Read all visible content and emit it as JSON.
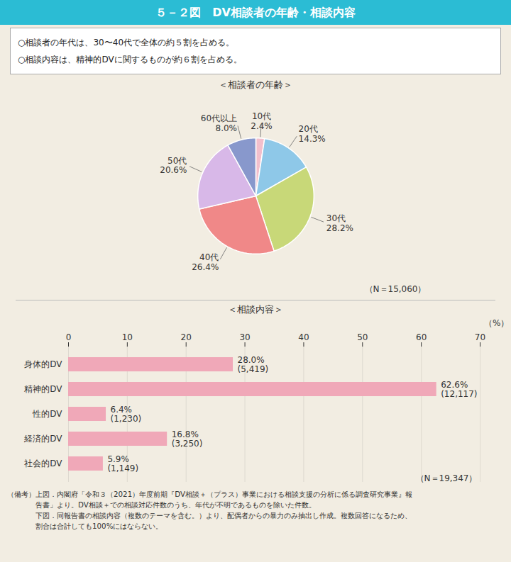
{
  "title": "５－２図　DV相談者の年齢・相談内容",
  "subtitle": [
    "○相談者の年代は、30〜40代で全体の約５割を占める。",
    "○相談内容は、精神的DVに関するものが約６割を占める。"
  ],
  "annotations": [
    "（備考）上図．内閣府「令和３（2021）年度前期『DV相談＋（プラス）事業における相談支援の分析に係る調査研究事業』報",
    "　　　　告書」より。DV相談＋での相談対応件数のうち、年代が不明であるものを除いた件数。",
    "　　　　下図．同報告書の相談内容（複数のテーマを含む。）より、配偶者からの暴力のみ抽出し作成。複数回答になるため、",
    "　　　　割合は合計しても100%にはならない。"
  ],
  "chart_data": [
    {
      "type": "pie",
      "title": "＜相談者の年齢＞",
      "categories": [
        "10代",
        "20代",
        "30代",
        "40代",
        "50代",
        "60代以上"
      ],
      "values": [
        2.4,
        14.3,
        28.2,
        26.4,
        20.6,
        8.0
      ],
      "value_labels": [
        "2.4%",
        "14.3%",
        "28.2%",
        "26.4%",
        "20.6%",
        "8.0%"
      ],
      "colors": [
        "#f2bfcc",
        "#8ec8e8",
        "#c8d878",
        "#f08888",
        "#d8b8e8",
        "#8898cc"
      ],
      "data_labels": true,
      "annotations": [
        "（N＝15,060）"
      ]
    },
    {
      "type": "bar",
      "title": "＜相談内容＞",
      "orientation": "horizontal",
      "categories": [
        "身体的DV",
        "精神的DV",
        "性的DV",
        "経済的DV",
        "社会的DV"
      ],
      "values": [
        28.0,
        62.6,
        6.4,
        16.8,
        5.9
      ],
      "value_labels": [
        "28.0%",
        "62.6%",
        "6.4%",
        "16.8%",
        "5.9%"
      ],
      "counts": [
        5419,
        12117,
        1230,
        3250,
        1149
      ],
      "count_labels": [
        "(5,419)",
        "(12,117)",
        "(1,230)",
        "(3,250)",
        "(1,149)"
      ],
      "color": "#f0a8b8",
      "xlabel": "（%）",
      "xlim": [
        0,
        70
      ],
      "xticks": [
        0,
        10,
        20,
        30,
        40,
        50,
        60,
        70
      ],
      "grid": true,
      "data_labels": true,
      "annotations": [
        "（N＝19,347）"
      ]
    }
  ]
}
